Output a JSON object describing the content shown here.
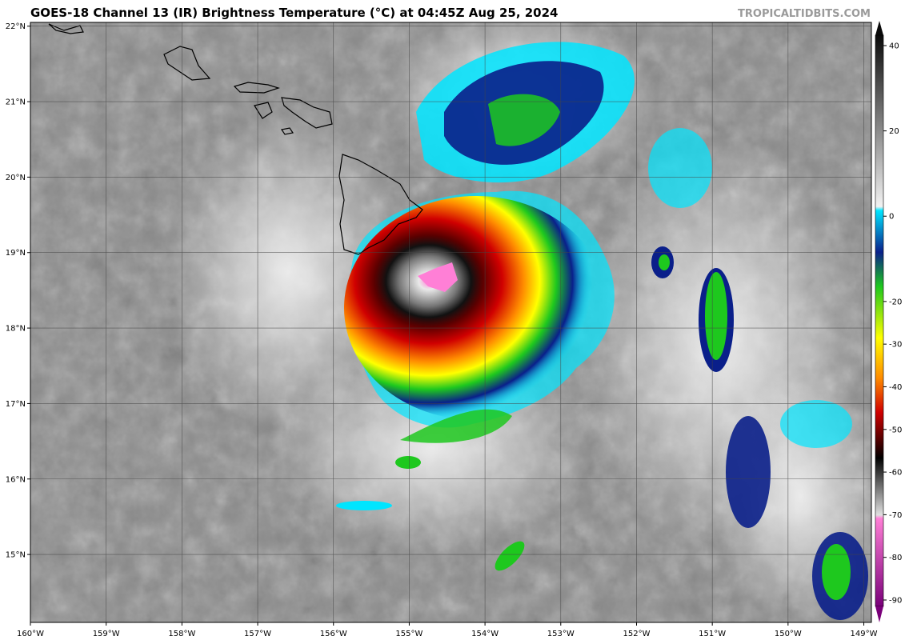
{
  "header": {
    "title": "GOES-18 Channel 13 (IR) Brightness Temperature (°C) at 04:45Z Aug 25, 2024",
    "watermark": "TROPICALTIDBITS.COM"
  },
  "map": {
    "lon_range": [
      -160,
      -148.9
    ],
    "lat_range": [
      14.1,
      22.05
    ],
    "lat_ticks": [
      "22°N",
      "21°N",
      "20°N",
      "19°N",
      "18°N",
      "17°N",
      "16°N",
      "15°N"
    ],
    "lon_ticks": [
      "160°W",
      "159°W",
      "158°W",
      "157°W",
      "156°W",
      "155°W",
      "154°W",
      "153°W",
      "152°W",
      "151°W",
      "150°W",
      "149°W"
    ],
    "storm_center_text": "",
    "gridlines": true
  },
  "colorbar": {
    "range": [
      -90,
      40
    ],
    "tick_labels": [
      "40",
      "20",
      "0",
      "-20",
      "-30",
      "-40",
      "-50",
      "-60",
      "-70",
      "-80",
      "-90"
    ],
    "palette": {
      "warm_gray_top": "#0a0a0a",
      "warm_gray_bottom": "#f2f2f2",
      "cyan": "#00e5ff",
      "blue": "#0a1f8a",
      "green": "#1ec81e",
      "yellow": "#ffff00",
      "orange": "#ff8c00",
      "red": "#d00000",
      "darkred": "#400000",
      "black": "#000000",
      "pink": "#ff7fd6",
      "purple": "#7a007a"
    }
  },
  "colors": {
    "ocean_gray": "#8a8a8a",
    "coastline": "#000000",
    "gridline": "#444444"
  }
}
